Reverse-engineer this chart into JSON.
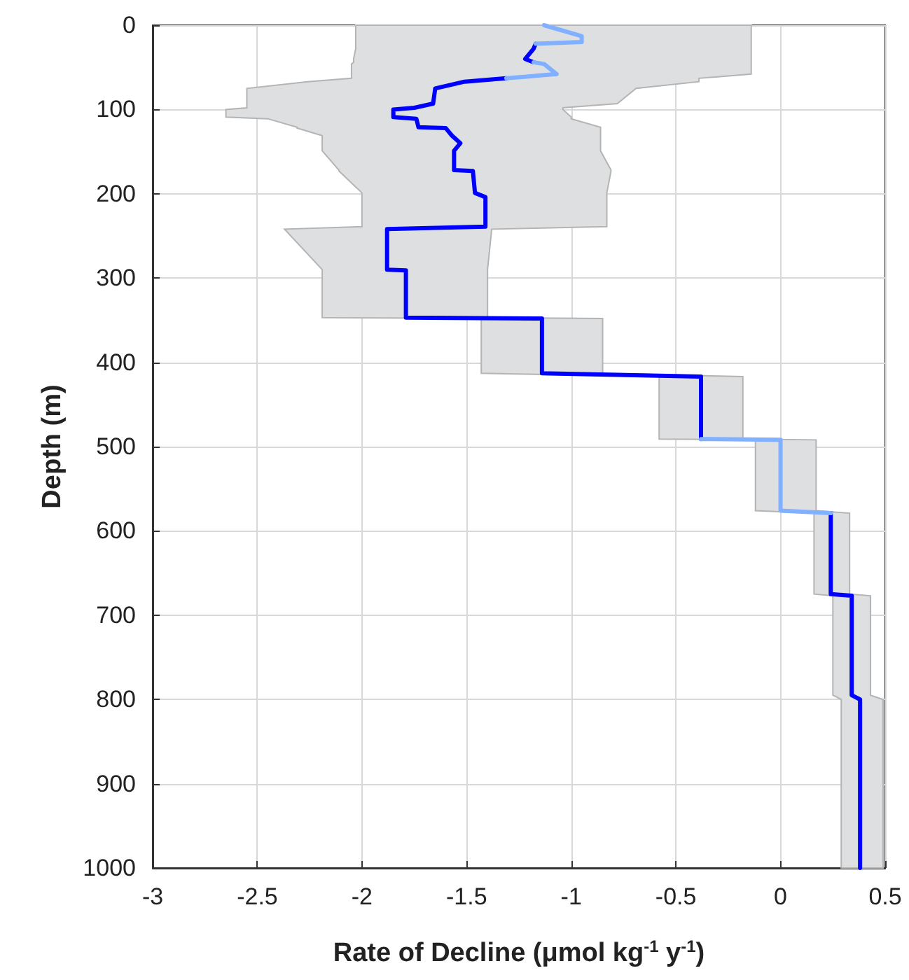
{
  "chart_data": {
    "type": "line",
    "orientation": "horizontal",
    "xlabel": "Rate of Decline (μmol kg$^{-1}$ y$^{-1}$)",
    "ylabel": "Depth (m)",
    "xlim": [
      -3,
      0.5
    ],
    "xticks": [
      -3,
      -2.5,
      -2,
      -1.5,
      -1,
      -0.5,
      0,
      0.5
    ],
    "ylim": [
      1000,
      0
    ],
    "yticks": [
      0,
      100,
      200,
      300,
      400,
      500,
      600,
      700,
      800,
      900,
      1000
    ],
    "grid": true,
    "marker": "none",
    "line_style": "solid",
    "x": [
      0,
      13,
      20,
      22,
      28,
      40,
      44,
      46,
      58,
      63,
      67,
      75,
      93,
      98,
      100,
      109,
      111,
      121,
      122,
      131,
      140,
      149,
      172,
      173,
      199,
      204,
      239,
      242,
      290,
      291,
      347,
      348,
      413,
      417,
      491,
      492,
      576,
      579,
      675,
      677,
      795,
      800,
      1000
    ],
    "series": [
      {
        "color": "#0000ff",
        "values": [
          null,
          null,
          null,
          -1.17,
          -1.18,
          -1.22,
          -1.18,
          null,
          null,
          -1.31,
          -1.51,
          -1.65,
          -1.66,
          -1.75,
          -1.85,
          -1.85,
          -1.74,
          -1.73,
          -1.6,
          -1.57,
          -1.53,
          -1.56,
          -1.56,
          -1.47,
          -1.46,
          -1.41,
          -1.41,
          -1.88,
          -1.88,
          -1.79,
          -1.79,
          -1.14,
          -1.14,
          -0.38,
          -0.38,
          null,
          null,
          0.24,
          0.24,
          0.34,
          0.34,
          0.38,
          0.38
        ],
        "lower": [
          -2.03,
          -2.03,
          -2.03,
          -2.03,
          -2.03,
          -2.04,
          -2.04,
          -2.05,
          -2.05,
          -2.05,
          -2.26,
          -2.55,
          -2.55,
          -2.55,
          -2.65,
          -2.65,
          -2.45,
          -2.31,
          -2.31,
          -2.19,
          -2.19,
          -2.19,
          -2.11,
          -2.11,
          -2.0,
          -2.0,
          -2.0,
          -2.37,
          -2.19,
          -2.19,
          -2.19,
          -1.43,
          -1.43,
          -0.58,
          -0.58,
          -0.12,
          -0.12,
          0.16,
          0.16,
          0.25,
          0.25,
          0.29,
          0.29
        ],
        "upper": [
          -0.14,
          -0.14,
          -0.14,
          -0.14,
          -0.14,
          -0.14,
          -0.14,
          -0.14,
          -0.14,
          -0.39,
          -0.39,
          -0.69,
          -0.78,
          -1.04,
          -1.04,
          -1.0,
          -1.0,
          -0.86,
          -0.86,
          -0.86,
          -0.86,
          -0.86,
          -0.81,
          -0.81,
          -0.83,
          -0.83,
          -0.83,
          -1.38,
          -1.4,
          -1.4,
          -1.4,
          -0.85,
          -0.85,
          -0.18,
          -0.18,
          0.17,
          0.17,
          0.33,
          0.33,
          0.43,
          0.43,
          0.49,
          0.49
        ]
      },
      {
        "color": "#80b0ff",
        "values": [
          -1.13,
          -0.95,
          -0.95,
          -1.17,
          null,
          null,
          -1.18,
          -1.13,
          -1.07,
          -1.31,
          null,
          null,
          null,
          null,
          null,
          null,
          null,
          null,
          null,
          null,
          null,
          null,
          null,
          null,
          null,
          null,
          null,
          null,
          null,
          null,
          null,
          null,
          null,
          null,
          -0.38,
          0.0,
          0.0,
          0.24,
          null,
          null,
          null,
          null,
          null
        ]
      }
    ]
  }
}
